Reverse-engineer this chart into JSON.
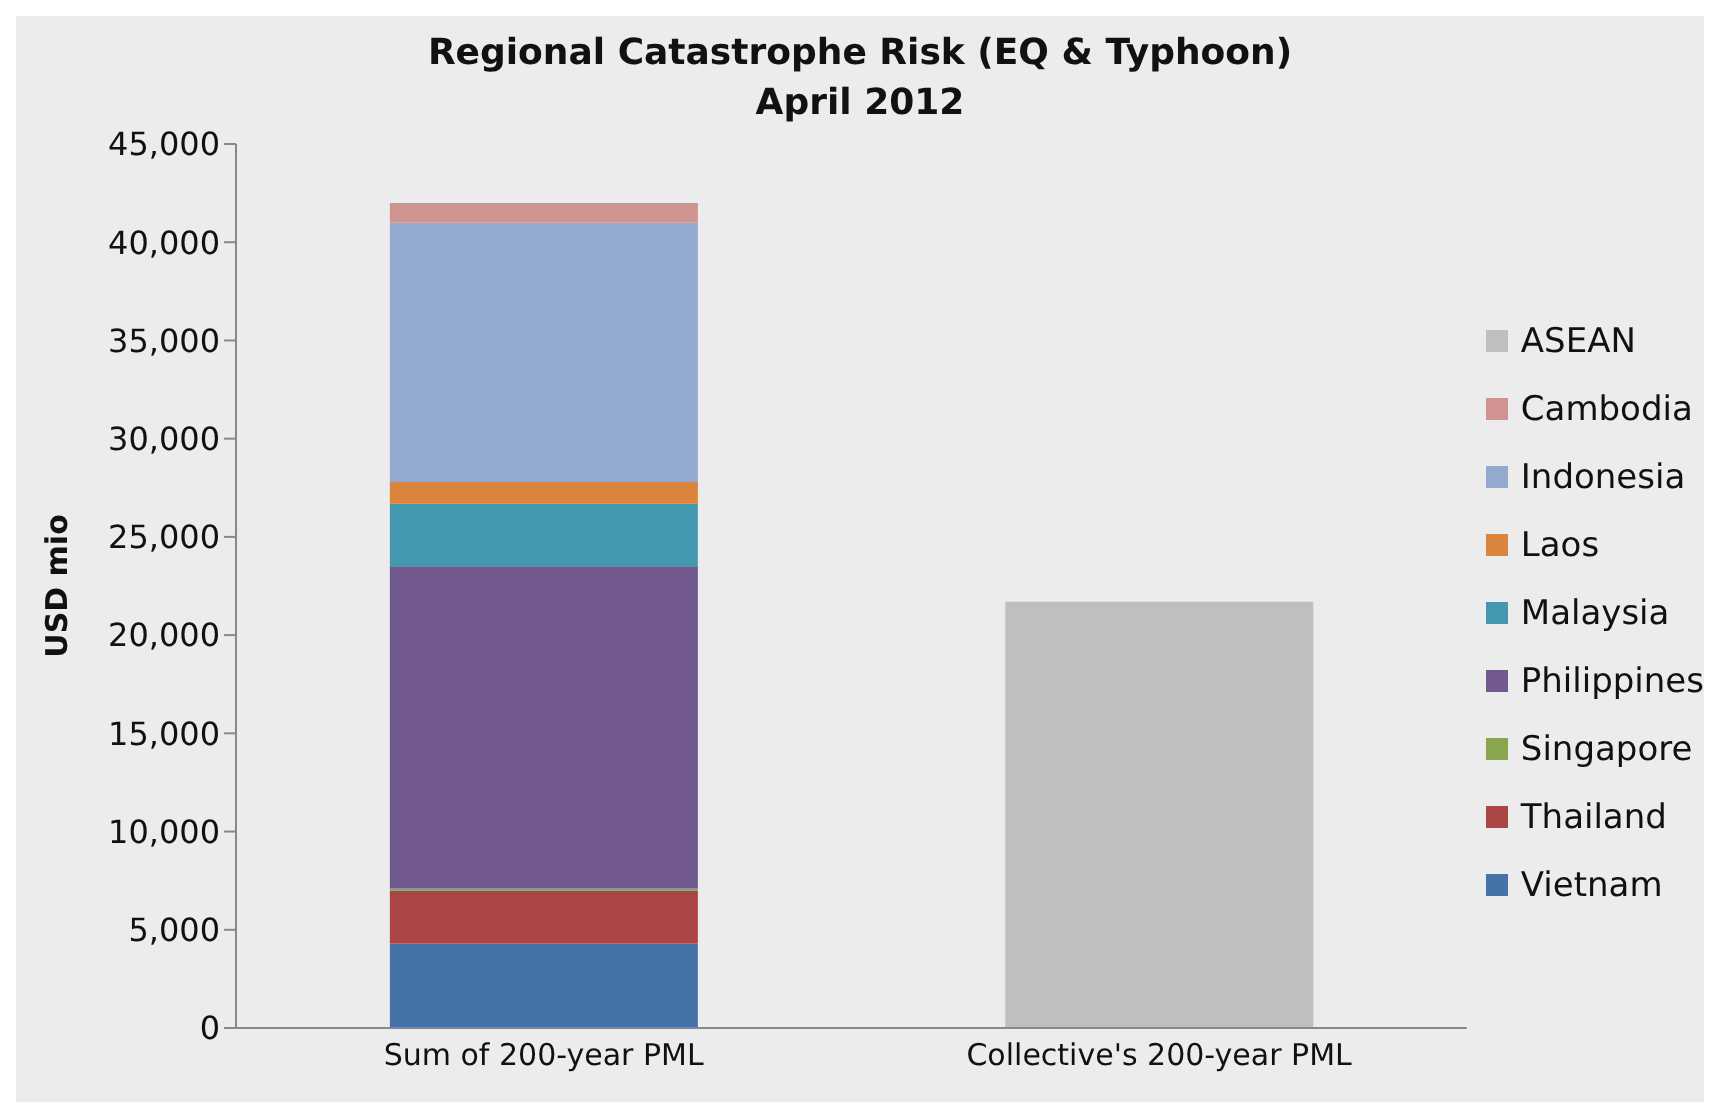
{
  "chart_data": {
    "type": "bar",
    "title": "Regional Catastrophe Risk (EQ & Typhoon)",
    "subtitle": "April 2012",
    "ylabel": "USD mio",
    "categories": [
      "Sum of 200-year PML",
      "Collective's 200-year PML"
    ],
    "stacked": true,
    "series": [
      {
        "name": "Vietnam",
        "color": "#4572a7",
        "values": [
          4300,
          null
        ]
      },
      {
        "name": "Thailand",
        "color": "#aa4643",
        "values": [
          2700,
          null
        ]
      },
      {
        "name": "Singapore",
        "color": "#89a54e",
        "values": [
          100,
          null
        ]
      },
      {
        "name": "Philippines",
        "color": "#71588f",
        "values": [
          16400,
          null
        ]
      },
      {
        "name": "Malaysia",
        "color": "#4198af",
        "values": [
          3200,
          null
        ]
      },
      {
        "name": "Laos",
        "color": "#db843d",
        "values": [
          1100,
          null
        ]
      },
      {
        "name": "Indonesia",
        "color": "#93a9cf",
        "values": [
          13200,
          null
        ]
      },
      {
        "name": "Cambodia",
        "color": "#d19392",
        "values": [
          1000,
          null
        ]
      },
      {
        "name": "ASEAN",
        "color": "#bfbfbf",
        "values": [
          null,
          21700
        ]
      }
    ],
    "ylim": [
      0,
      45000
    ],
    "yticks": [
      0,
      {
        "value": 5000,
        "label": "5,000"
      },
      {
        "value": 10000,
        "label": "10,000"
      },
      {
        "value": 15000,
        "label": "15,000"
      },
      {
        "value": 20000,
        "label": "20,000"
      },
      {
        "value": 25000,
        "label": "25,000"
      },
      {
        "value": 30000,
        "label": "30,000"
      },
      {
        "value": 35000,
        "label": "35,000"
      },
      {
        "value": 40000,
        "label": "40,000"
      },
      {
        "value": 45000,
        "label": "45,000"
      }
    ],
    "grid": false,
    "legend": "right"
  }
}
